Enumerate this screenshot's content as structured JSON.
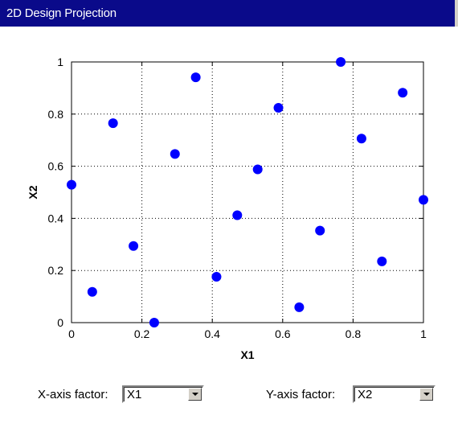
{
  "window": {
    "title": "2D Design Projection"
  },
  "chart_data": {
    "type": "scatter",
    "title": "",
    "xlabel": "X1",
    "ylabel": "X2",
    "xlim": [
      0,
      1
    ],
    "ylim": [
      0,
      1
    ],
    "xticks": [
      "0",
      "0.2",
      "0.4",
      "0.6",
      "0.8",
      "1"
    ],
    "yticks": [
      "0",
      "0.2",
      "0.4",
      "0.6",
      "0.8",
      "1"
    ],
    "grid": "dotted",
    "marker_color": "#0000ff",
    "points": [
      {
        "x": 0.0,
        "y": 0.529
      },
      {
        "x": 0.059,
        "y": 0.118
      },
      {
        "x": 0.118,
        "y": 0.765
      },
      {
        "x": 0.176,
        "y": 0.294
      },
      {
        "x": 0.235,
        "y": 0.0
      },
      {
        "x": 0.294,
        "y": 0.647
      },
      {
        "x": 0.353,
        "y": 0.941
      },
      {
        "x": 0.412,
        "y": 0.176
      },
      {
        "x": 0.471,
        "y": 0.412
      },
      {
        "x": 0.529,
        "y": 0.588
      },
      {
        "x": 0.588,
        "y": 0.824
      },
      {
        "x": 0.647,
        "y": 0.059
      },
      {
        "x": 0.706,
        "y": 0.353
      },
      {
        "x": 0.765,
        "y": 1.0
      },
      {
        "x": 0.824,
        "y": 0.706
      },
      {
        "x": 0.882,
        "y": 0.235
      },
      {
        "x": 0.941,
        "y": 0.882
      },
      {
        "x": 1.0,
        "y": 0.471
      }
    ]
  },
  "controls": {
    "x_factor": {
      "label": "X-axis factor:",
      "value": "X1"
    },
    "y_factor": {
      "label": "Y-axis factor:",
      "value": "X2"
    }
  }
}
